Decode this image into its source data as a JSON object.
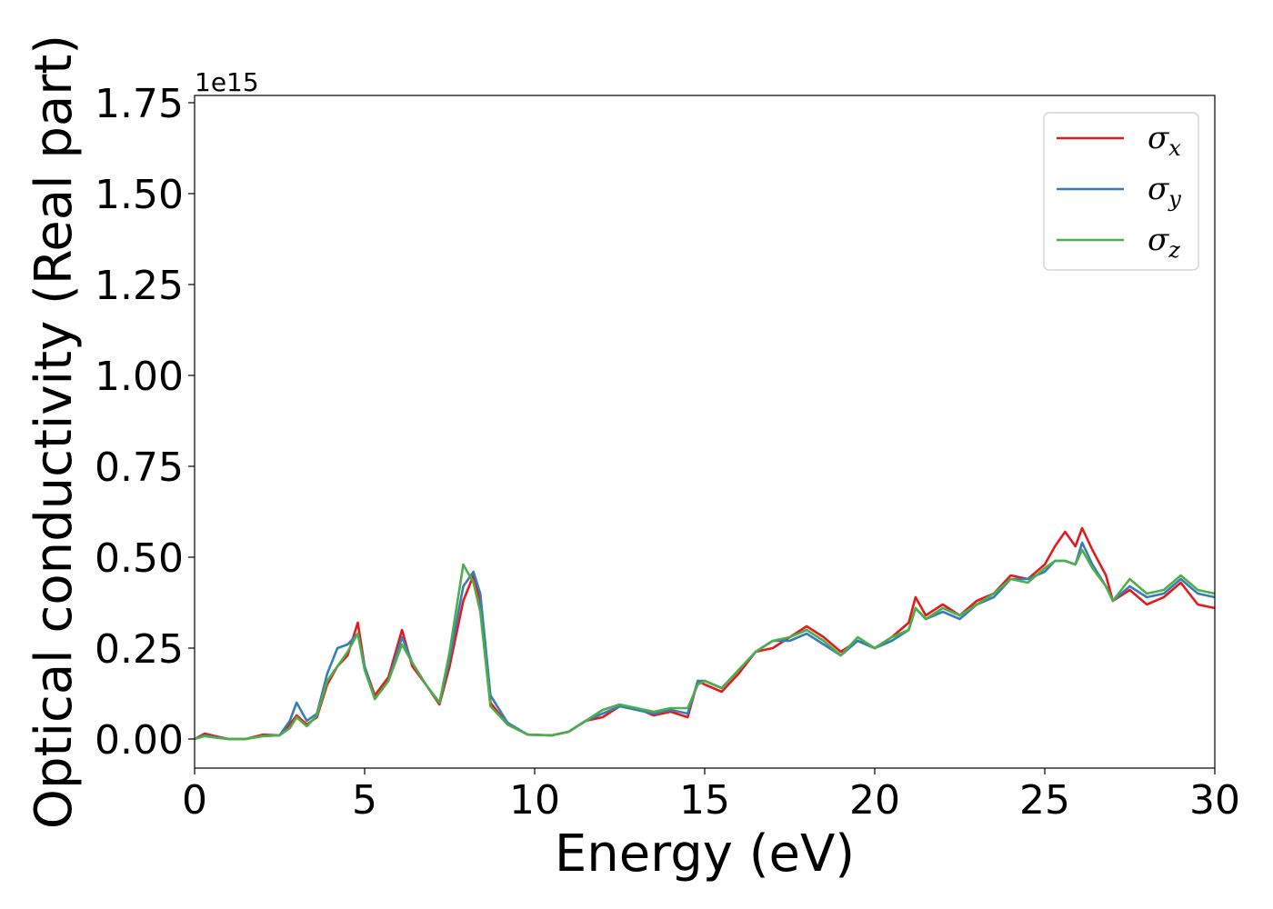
{
  "chart_data": {
    "type": "line",
    "xlabel": "Energy (eV)",
    "ylabel": "Optical conductivity (Real part)",
    "y_offset_label": "1e15",
    "xlim": [
      0,
      30
    ],
    "ylim": [
      -0.08,
      1.77
    ],
    "x_ticks": [
      0,
      5,
      10,
      15,
      20,
      25,
      30
    ],
    "x_tick_labels": [
      "0",
      "5",
      "10",
      "15",
      "20",
      "25",
      "30"
    ],
    "y_ticks": [
      0,
      0.25,
      0.5,
      0.75,
      1.0,
      1.25,
      1.5,
      1.75
    ],
    "y_tick_labels": [
      "0.00",
      "0.25",
      "0.50",
      "0.75",
      "1.00",
      "1.25",
      "1.50",
      "1.75"
    ],
    "grid": false,
    "legend_position": "top-right",
    "series": [
      {
        "name": "σ",
        "subscript": "x",
        "color": "#e41a1c",
        "points": [
          [
            0,
            0.0
          ],
          [
            0.3,
            0.015
          ],
          [
            0.6,
            0.008
          ],
          [
            1.0,
            0.0
          ],
          [
            1.5,
            0.0
          ],
          [
            2.0,
            0.012
          ],
          [
            2.5,
            0.01
          ],
          [
            2.8,
            0.04
          ],
          [
            3.0,
            0.065
          ],
          [
            3.3,
            0.04
          ],
          [
            3.6,
            0.06
          ],
          [
            3.9,
            0.15
          ],
          [
            4.2,
            0.2
          ],
          [
            4.5,
            0.23
          ],
          [
            4.8,
            0.32
          ],
          [
            5.0,
            0.2
          ],
          [
            5.3,
            0.12
          ],
          [
            5.7,
            0.17
          ],
          [
            6.1,
            0.3
          ],
          [
            6.4,
            0.2
          ],
          [
            6.8,
            0.15
          ],
          [
            7.2,
            0.095
          ],
          [
            7.5,
            0.2
          ],
          [
            7.9,
            0.38
          ],
          [
            8.2,
            0.45
          ],
          [
            8.4,
            0.38
          ],
          [
            8.7,
            0.1
          ],
          [
            9.2,
            0.04
          ],
          [
            9.8,
            0.012
          ],
          [
            10.5,
            0.01
          ],
          [
            11.0,
            0.02
          ],
          [
            11.5,
            0.05
          ],
          [
            12.0,
            0.06
          ],
          [
            12.5,
            0.09
          ],
          [
            13.0,
            0.085
          ],
          [
            13.5,
            0.065
          ],
          [
            14.0,
            0.075
          ],
          [
            14.5,
            0.06
          ],
          [
            14.8,
            0.16
          ],
          [
            15.0,
            0.15
          ],
          [
            15.5,
            0.13
          ],
          [
            16.0,
            0.18
          ],
          [
            16.5,
            0.24
          ],
          [
            17.0,
            0.25
          ],
          [
            17.5,
            0.28
          ],
          [
            18.0,
            0.31
          ],
          [
            18.5,
            0.28
          ],
          [
            19.0,
            0.24
          ],
          [
            19.5,
            0.27
          ],
          [
            20.0,
            0.25
          ],
          [
            20.5,
            0.28
          ],
          [
            21.0,
            0.32
          ],
          [
            21.2,
            0.39
          ],
          [
            21.5,
            0.34
          ],
          [
            22.0,
            0.37
          ],
          [
            22.5,
            0.34
          ],
          [
            23.0,
            0.38
          ],
          [
            23.5,
            0.4
          ],
          [
            24.0,
            0.45
          ],
          [
            24.5,
            0.44
          ],
          [
            25.0,
            0.48
          ],
          [
            25.3,
            0.53
          ],
          [
            25.6,
            0.57
          ],
          [
            25.9,
            0.53
          ],
          [
            26.1,
            0.58
          ],
          [
            26.4,
            0.52
          ],
          [
            26.8,
            0.45
          ],
          [
            27.0,
            0.38
          ],
          [
            27.5,
            0.41
          ],
          [
            28.0,
            0.37
          ],
          [
            28.5,
            0.39
          ],
          [
            29.0,
            0.43
          ],
          [
            29.5,
            0.37
          ],
          [
            30.0,
            0.36
          ]
        ]
      },
      {
        "name": "σ",
        "subscript": "y",
        "color": "#377eb8",
        "points": [
          [
            0,
            0.0
          ],
          [
            0.3,
            0.01
          ],
          [
            0.6,
            0.005
          ],
          [
            1.0,
            0.0
          ],
          [
            1.5,
            0.0
          ],
          [
            2.0,
            0.008
          ],
          [
            2.5,
            0.01
          ],
          [
            2.8,
            0.05
          ],
          [
            3.0,
            0.1
          ],
          [
            3.3,
            0.05
          ],
          [
            3.6,
            0.07
          ],
          [
            3.9,
            0.18
          ],
          [
            4.2,
            0.25
          ],
          [
            4.5,
            0.26
          ],
          [
            4.8,
            0.29
          ],
          [
            5.0,
            0.2
          ],
          [
            5.3,
            0.11
          ],
          [
            5.7,
            0.16
          ],
          [
            6.1,
            0.28
          ],
          [
            6.4,
            0.21
          ],
          [
            6.8,
            0.15
          ],
          [
            7.2,
            0.1
          ],
          [
            7.5,
            0.22
          ],
          [
            7.9,
            0.42
          ],
          [
            8.2,
            0.46
          ],
          [
            8.4,
            0.4
          ],
          [
            8.7,
            0.12
          ],
          [
            9.2,
            0.045
          ],
          [
            9.8,
            0.012
          ],
          [
            10.5,
            0.01
          ],
          [
            11.0,
            0.02
          ],
          [
            11.5,
            0.05
          ],
          [
            12.0,
            0.07
          ],
          [
            12.5,
            0.09
          ],
          [
            13.0,
            0.08
          ],
          [
            13.5,
            0.07
          ],
          [
            14.0,
            0.08
          ],
          [
            14.5,
            0.07
          ],
          [
            14.8,
            0.16
          ],
          [
            15.0,
            0.16
          ],
          [
            15.5,
            0.14
          ],
          [
            16.0,
            0.19
          ],
          [
            16.5,
            0.24
          ],
          [
            17.0,
            0.27
          ],
          [
            17.5,
            0.27
          ],
          [
            18.0,
            0.29
          ],
          [
            18.5,
            0.26
          ],
          [
            19.0,
            0.23
          ],
          [
            19.5,
            0.27
          ],
          [
            20.0,
            0.25
          ],
          [
            20.5,
            0.27
          ],
          [
            21.0,
            0.3
          ],
          [
            21.2,
            0.36
          ],
          [
            21.5,
            0.33
          ],
          [
            22.0,
            0.35
          ],
          [
            22.5,
            0.33
          ],
          [
            23.0,
            0.37
          ],
          [
            23.5,
            0.39
          ],
          [
            24.0,
            0.44
          ],
          [
            24.5,
            0.44
          ],
          [
            25.0,
            0.46
          ],
          [
            25.3,
            0.49
          ],
          [
            25.6,
            0.49
          ],
          [
            25.9,
            0.48
          ],
          [
            26.1,
            0.54
          ],
          [
            26.4,
            0.48
          ],
          [
            26.8,
            0.42
          ],
          [
            27.0,
            0.38
          ],
          [
            27.5,
            0.42
          ],
          [
            28.0,
            0.39
          ],
          [
            28.5,
            0.4
          ],
          [
            29.0,
            0.44
          ],
          [
            29.5,
            0.4
          ],
          [
            30.0,
            0.39
          ]
        ]
      },
      {
        "name": "σ",
        "subscript": "z",
        "color": "#4daf4a",
        "points": [
          [
            0,
            0.0
          ],
          [
            0.3,
            0.008
          ],
          [
            0.6,
            0.004
          ],
          [
            1.0,
            0.0
          ],
          [
            1.5,
            0.0
          ],
          [
            2.0,
            0.008
          ],
          [
            2.5,
            0.01
          ],
          [
            2.8,
            0.03
          ],
          [
            3.0,
            0.06
          ],
          [
            3.3,
            0.035
          ],
          [
            3.6,
            0.065
          ],
          [
            3.9,
            0.16
          ],
          [
            4.2,
            0.2
          ],
          [
            4.5,
            0.24
          ],
          [
            4.8,
            0.29
          ],
          [
            5.0,
            0.19
          ],
          [
            5.3,
            0.11
          ],
          [
            5.7,
            0.16
          ],
          [
            6.1,
            0.26
          ],
          [
            6.4,
            0.21
          ],
          [
            6.8,
            0.15
          ],
          [
            7.2,
            0.1
          ],
          [
            7.5,
            0.24
          ],
          [
            7.9,
            0.48
          ],
          [
            8.2,
            0.43
          ],
          [
            8.4,
            0.35
          ],
          [
            8.7,
            0.09
          ],
          [
            9.2,
            0.04
          ],
          [
            9.8,
            0.012
          ],
          [
            10.5,
            0.01
          ],
          [
            11.0,
            0.02
          ],
          [
            11.5,
            0.05
          ],
          [
            12.0,
            0.08
          ],
          [
            12.5,
            0.095
          ],
          [
            13.0,
            0.085
          ],
          [
            13.5,
            0.075
          ],
          [
            14.0,
            0.085
          ],
          [
            14.5,
            0.085
          ],
          [
            14.8,
            0.15
          ],
          [
            15.0,
            0.16
          ],
          [
            15.5,
            0.14
          ],
          [
            16.0,
            0.19
          ],
          [
            16.5,
            0.24
          ],
          [
            17.0,
            0.27
          ],
          [
            17.5,
            0.28
          ],
          [
            18.0,
            0.3
          ],
          [
            18.5,
            0.27
          ],
          [
            19.0,
            0.23
          ],
          [
            19.5,
            0.28
          ],
          [
            20.0,
            0.25
          ],
          [
            20.5,
            0.28
          ],
          [
            21.0,
            0.3
          ],
          [
            21.2,
            0.36
          ],
          [
            21.5,
            0.33
          ],
          [
            22.0,
            0.36
          ],
          [
            22.5,
            0.34
          ],
          [
            23.0,
            0.37
          ],
          [
            23.5,
            0.4
          ],
          [
            24.0,
            0.44
          ],
          [
            24.5,
            0.43
          ],
          [
            25.0,
            0.47
          ],
          [
            25.3,
            0.49
          ],
          [
            25.6,
            0.49
          ],
          [
            25.9,
            0.48
          ],
          [
            26.1,
            0.52
          ],
          [
            26.4,
            0.47
          ],
          [
            26.8,
            0.42
          ],
          [
            27.0,
            0.38
          ],
          [
            27.5,
            0.44
          ],
          [
            28.0,
            0.4
          ],
          [
            28.5,
            0.41
          ],
          [
            29.0,
            0.45
          ],
          [
            29.5,
            0.41
          ],
          [
            30.0,
            0.4
          ]
        ]
      }
    ]
  }
}
